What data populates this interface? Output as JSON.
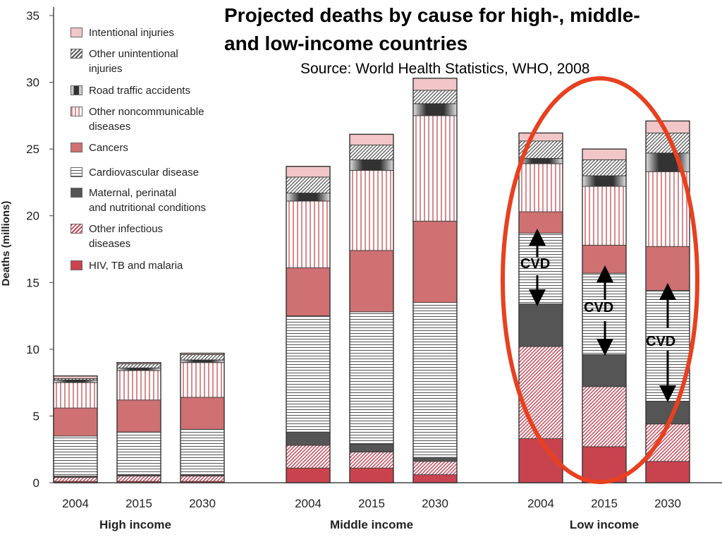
{
  "title": "Projected deaths by cause for high-, middle-\n and low-income countries",
  "subtitle": "Source: World Health Statistics, WHO, 2008",
  "colors": {
    "intentional": "#f2c6c8",
    "other_unintentional": "#555555",
    "road": "#333333",
    "other_ncd": "#d98a8e",
    "cancers": "#cf7072",
    "cvd": "#555555",
    "maternal": "#555555",
    "other_infectious": "#c94a5a",
    "hiv": "#c9434f",
    "ellipse": "#e8401f"
  },
  "legend": [
    {
      "key": "intentional",
      "label": "Intentional injuries"
    },
    {
      "key": "other_unintentional",
      "label": "Other unintentional\ninjuries"
    },
    {
      "key": "road",
      "label": "Road traffic accidents"
    },
    {
      "key": "other_ncd",
      "label": "Other noncommunicable\ndiseases"
    },
    {
      "key": "cancers",
      "label": "Cancers"
    },
    {
      "key": "cvd",
      "label": "Cardiovascular disease"
    },
    {
      "key": "maternal",
      "label": "Maternal, perinatal\nand nutritional conditions"
    },
    {
      "key": "other_infectious",
      "label": "Other infectious\ndiseases"
    },
    {
      "key": "hiv",
      "label": "HIV, TB and malaria"
    }
  ],
  "cvd_label": "CVD",
  "chart_data": {
    "type": "bar",
    "stacked": true,
    "title": "Projected deaths by cause for high-, middle-\n and low-income countries",
    "subtitle": "Source: World Health Statistics, WHO, 2008",
    "ylabel": "Deaths (millions)",
    "ylim": [
      0,
      35
    ],
    "yticks": [
      0,
      5,
      10,
      15,
      20,
      25,
      30,
      35
    ],
    "legend_position": "top-left",
    "groups": [
      {
        "label": "High income",
        "years": [
          "2004",
          "2015",
          "2030"
        ]
      },
      {
        "label": "Middle income",
        "years": [
          "2004",
          "2015",
          "2030"
        ]
      },
      {
        "label": "Low income",
        "years": [
          "2004",
          "2015",
          "2030"
        ]
      }
    ],
    "categories": [
      "2004",
      "2015",
      "2030",
      "2004",
      "2015",
      "2030",
      "2004",
      "2015",
      "2030"
    ],
    "series": [
      {
        "name": "HIV, TB and malaria",
        "key": "hiv",
        "values": [
          0.1,
          0.1,
          0.1,
          1.1,
          1.1,
          0.6,
          3.3,
          2.7,
          1.6
        ]
      },
      {
        "name": "Other infectious diseases",
        "key": "other_infectious",
        "values": [
          0.3,
          0.4,
          0.4,
          1.7,
          1.2,
          1.0,
          6.9,
          4.5,
          2.8
        ]
      },
      {
        "name": "Maternal, perinatal and nutritional conditions",
        "key": "maternal",
        "values": [
          0.1,
          0.1,
          0.1,
          1.0,
          0.6,
          0.3,
          3.2,
          2.4,
          1.7
        ]
      },
      {
        "name": "Cardiovascular disease",
        "key": "cvd",
        "values": [
          3.0,
          3.2,
          3.4,
          8.7,
          9.9,
          11.6,
          5.3,
          6.1,
          8.3
        ]
      },
      {
        "name": "Cancers",
        "key": "cancers",
        "values": [
          2.1,
          2.4,
          2.4,
          3.6,
          4.6,
          6.1,
          1.6,
          2.1,
          3.3
        ]
      },
      {
        "name": "Other noncommunicable diseases",
        "key": "other_ncd",
        "values": [
          1.9,
          2.2,
          2.6,
          5.0,
          6.0,
          7.9,
          3.6,
          4.4,
          5.6
        ]
      },
      {
        "name": "Road traffic accidents",
        "key": "road",
        "values": [
          0.2,
          0.2,
          0.2,
          0.6,
          0.8,
          0.9,
          0.4,
          0.8,
          1.4
        ]
      },
      {
        "name": "Other unintentional injuries",
        "key": "other_unintentional",
        "values": [
          0.1,
          0.3,
          0.4,
          1.2,
          1.1,
          1.0,
          1.3,
          1.2,
          1.5
        ]
      },
      {
        "name": "Intentional injuries",
        "key": "intentional",
        "values": [
          0.2,
          0.1,
          0.1,
          0.8,
          0.8,
          0.9,
          0.6,
          0.8,
          0.9
        ]
      }
    ],
    "annotations": [
      {
        "text": "CVD",
        "bar_index": 6
      },
      {
        "text": "CVD",
        "bar_index": 7
      },
      {
        "text": "CVD",
        "bar_index": 8
      }
    ]
  }
}
